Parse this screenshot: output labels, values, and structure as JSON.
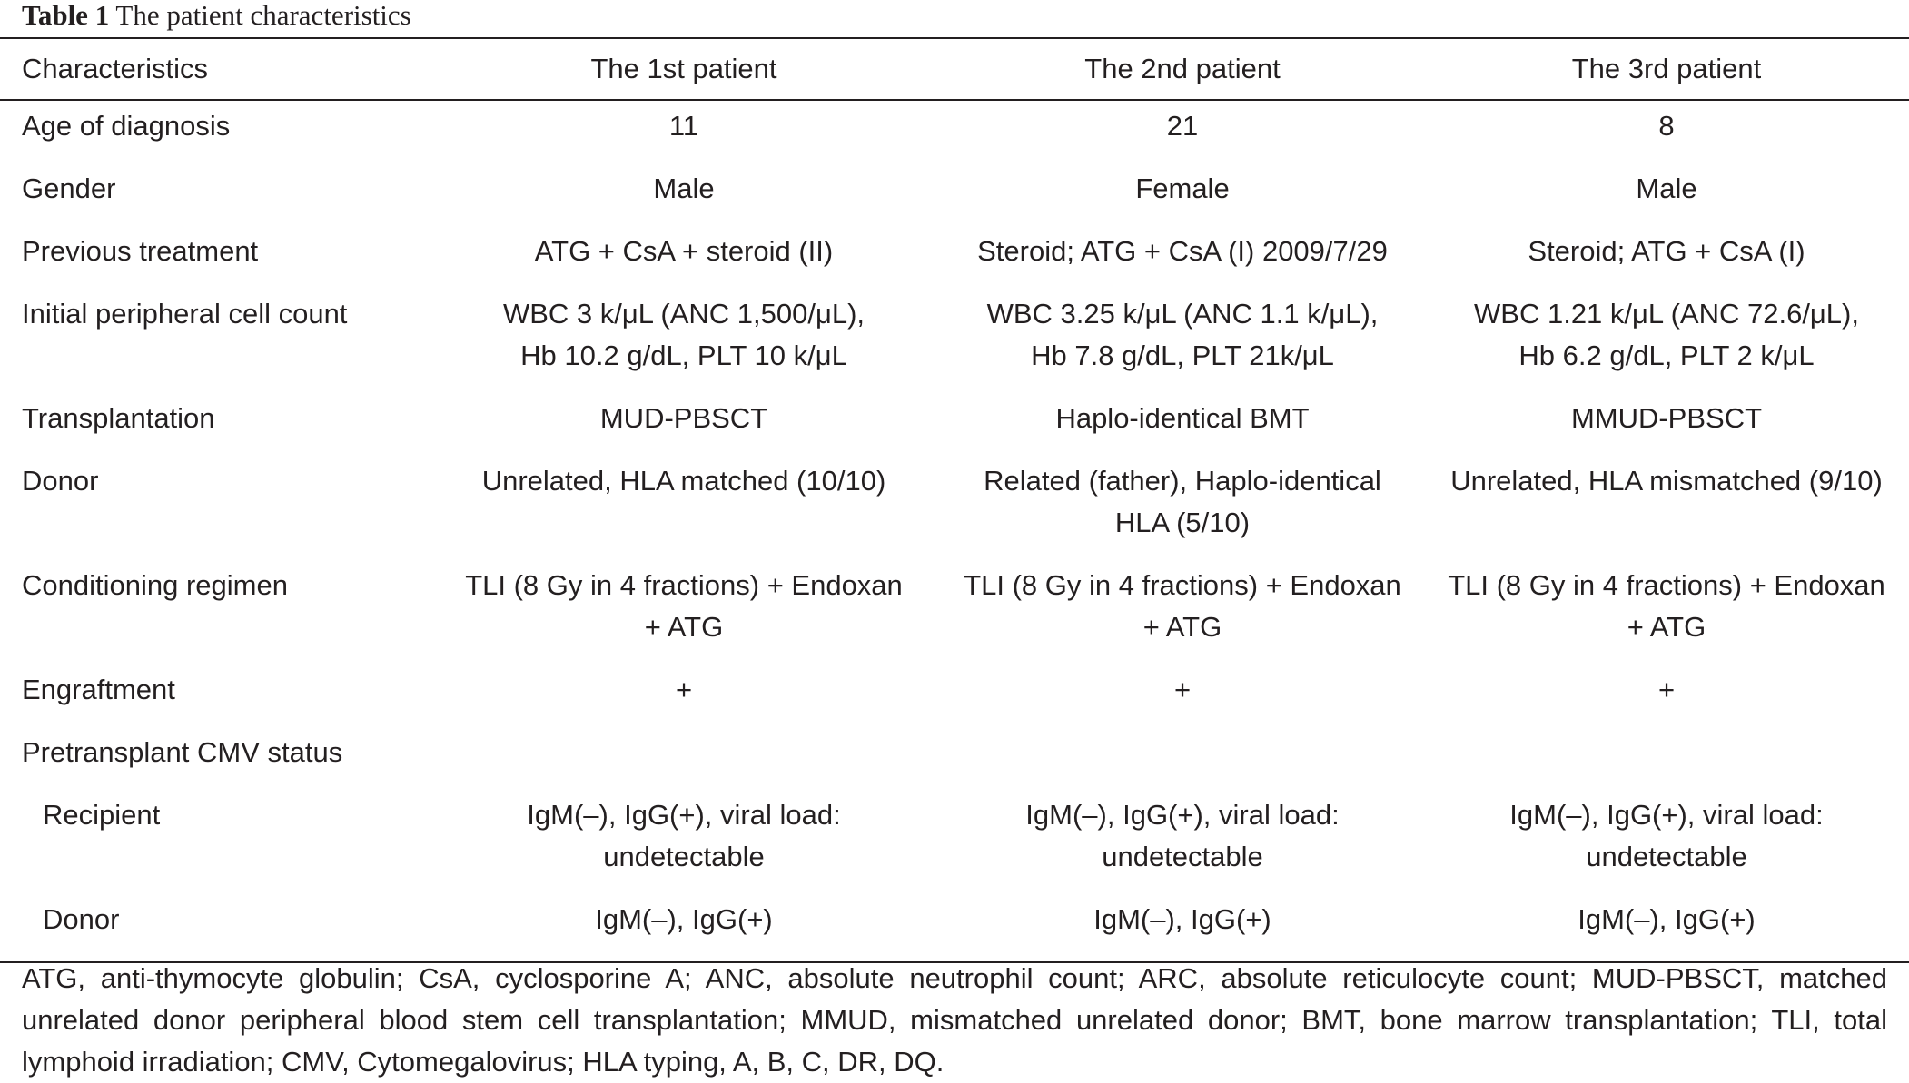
{
  "caption": {
    "label": "Table 1",
    "title": "The patient characteristics"
  },
  "table": {
    "headers": [
      "Characteristics",
      "The 1st patient",
      "The 2nd patient",
      "The 3rd patient"
    ],
    "rows": [
      {
        "label": "Age of diagnosis",
        "values": [
          [
            "11"
          ],
          [
            "21"
          ],
          [
            "8"
          ]
        ]
      },
      {
        "label": "Gender",
        "values": [
          [
            "Male"
          ],
          [
            "Female"
          ],
          [
            "Male"
          ]
        ]
      },
      {
        "label": "Previous treatment",
        "values": [
          [
            "ATG + CsA + steroid (II)"
          ],
          [
            "Steroid; ATG + CsA (I) 2009/7/29"
          ],
          [
            "Steroid; ATG + CsA (I)"
          ]
        ]
      },
      {
        "label": "Initial peripheral cell count",
        "values": [
          [
            "WBC 3 k/μL (ANC 1,500/μL),",
            "Hb 10.2 g/dL, PLT 10 k/μL"
          ],
          [
            "WBC 3.25 k/μL (ANC 1.1 k/μL),",
            "Hb 7.8 g/dL, PLT 21k/μL"
          ],
          [
            "WBC 1.21 k/μL (ANC 72.6/μL),",
            "Hb 6.2 g/dL, PLT 2 k/μL"
          ]
        ]
      },
      {
        "label": "Transplantation",
        "values": [
          [
            "MUD-PBSCT"
          ],
          [
            "Haplo-identical BMT"
          ],
          [
            "MMUD-PBSCT"
          ]
        ]
      },
      {
        "label": "Donor",
        "values": [
          [
            "Unrelated, HLA matched (10/10)"
          ],
          [
            "Related (father), Haplo-identical",
            "HLA (5/10)"
          ],
          [
            "Unrelated, HLA mismatched (9/10)"
          ]
        ]
      },
      {
        "label": "Conditioning regimen",
        "values": [
          [
            "TLI (8 Gy in 4 fractions) + Endoxan",
            "+ ATG"
          ],
          [
            "TLI (8 Gy in 4 fractions) + Endoxan",
            "+ ATG"
          ],
          [
            "TLI (8 Gy in 4 fractions) + Endoxan",
            "+ ATG"
          ]
        ]
      },
      {
        "label": "Engraftment",
        "values": [
          [
            "+"
          ],
          [
            "+"
          ],
          [
            "+"
          ]
        ]
      },
      {
        "label": "Pretransplant CMV status",
        "values": [
          [
            ""
          ],
          [
            ""
          ],
          [
            ""
          ]
        ]
      },
      {
        "label": "Recipient",
        "values": [
          [
            "IgM(–), IgG(+), viral load:",
            "undetectable"
          ],
          [
            "IgM(–), IgG(+), viral load:",
            "undetectable"
          ],
          [
            "IgM(–), IgG(+), viral load:",
            "undetectable"
          ]
        ]
      },
      {
        "label": "Donor",
        "values": [
          [
            "IgM(–), IgG(+)"
          ],
          [
            "IgM(–), IgG(+)"
          ],
          [
            "IgM(–), IgG(+)"
          ]
        ]
      }
    ]
  },
  "footnote": "ATG, anti-thymocyte globulin; CsA, cyclosporine A; ANC, absolute neutrophil count; ARC, absolute reticulocyte count; MUD-PBSCT, matched unrelated donor peripheral blood stem cell transplantation; MMUD, mismatched unrelated donor; BMT, bone marrow transplantation; TLI, total lymphoid irradiation; CMV, Cytomegalovirus; HLA typing, A, B, C, DR, DQ."
}
